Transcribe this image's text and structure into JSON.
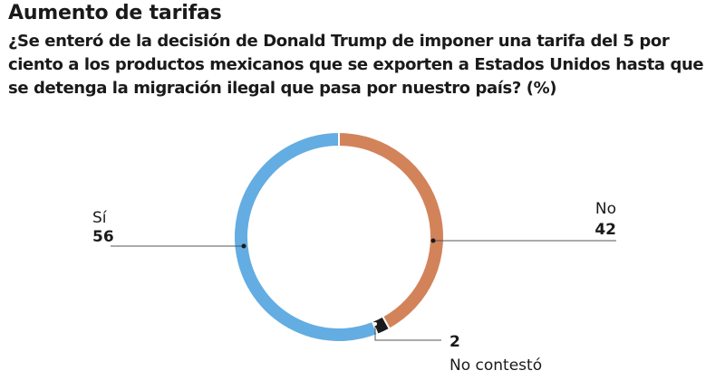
{
  "chart_data": {
    "type": "pie",
    "title": "Aumento de tarifas",
    "subtitle": "¿Se enteró de la decisión de Donald Trump de imponer una tarifa del 5 por ciento a los productos mexicanos que se exporten a Estados Unidos hasta que se detenga la migración ilegal que pasa por nuestro país? (%)",
    "donut": true,
    "slices": [
      {
        "label": "No",
        "value": 42,
        "color": "#d3835a"
      },
      {
        "label": "No contestó",
        "value": 2,
        "color": "#1a1a1a"
      },
      {
        "label": "Sí",
        "value": 56,
        "color": "#63ade2"
      }
    ]
  }
}
